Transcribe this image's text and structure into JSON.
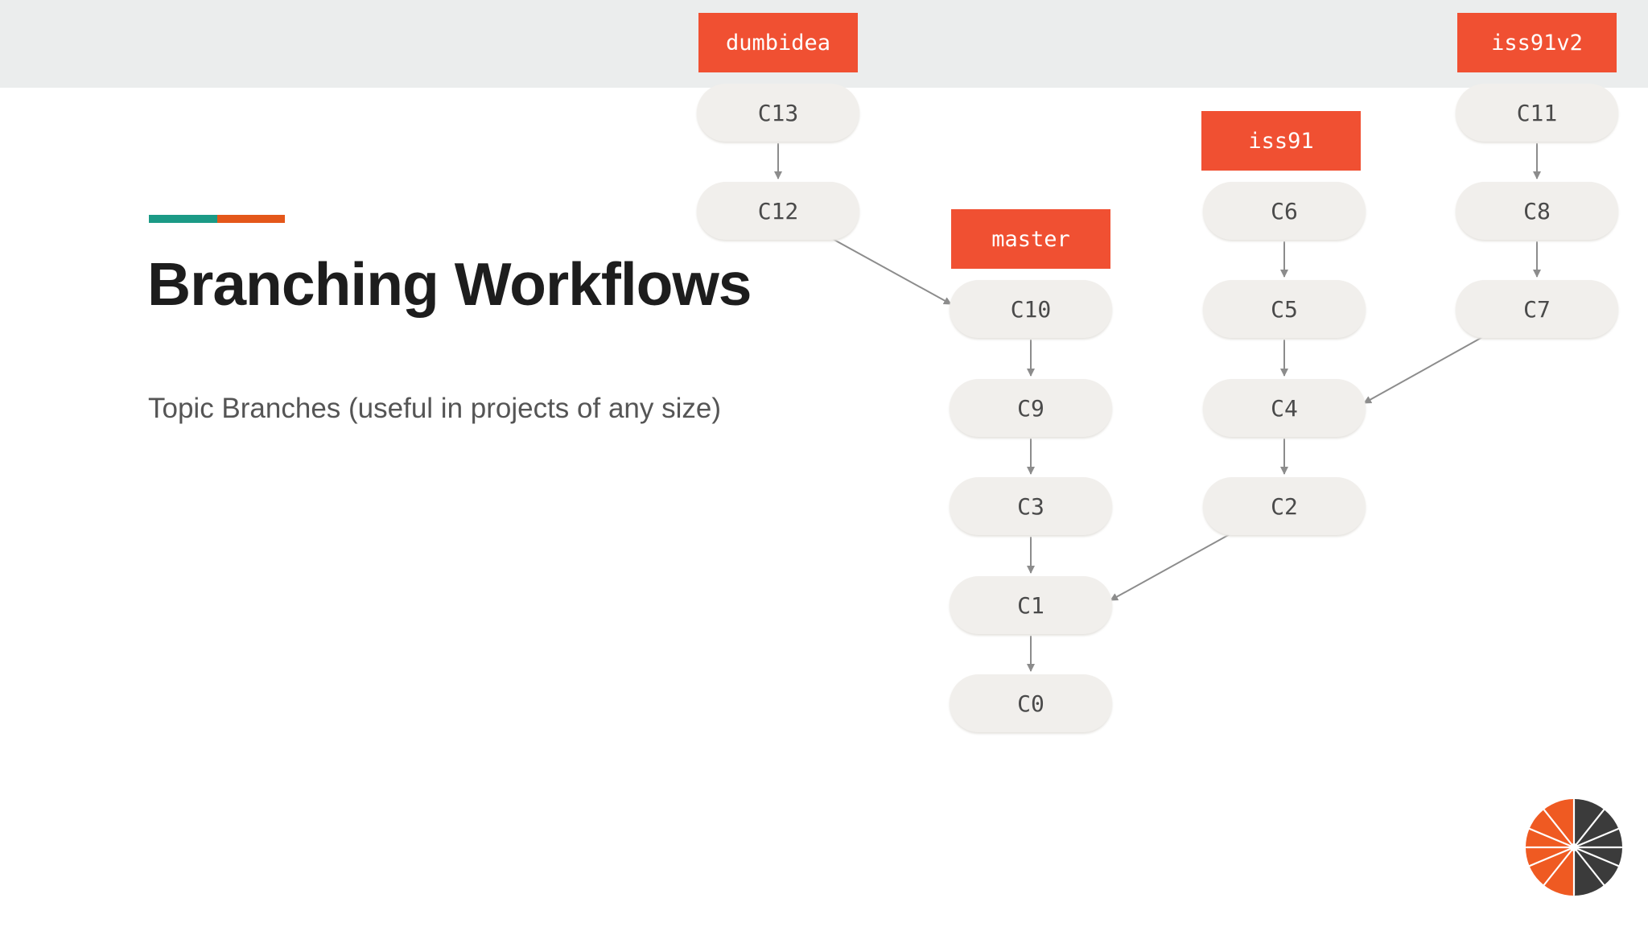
{
  "slide": {
    "title": "Branching Workflows",
    "subtitle": "Topic Branches (useful in projects of any size)"
  },
  "colors": {
    "top_band": "#ebeded",
    "accent_teal": "#1b9a86",
    "accent_orange": "#e4571a",
    "branch_label_bg": "#f05032",
    "commit_bg": "#f1efec",
    "arrow": "#8c8c8c"
  },
  "diagram": {
    "branches": [
      {
        "id": "dumbidea",
        "label": "dumbidea",
        "points_to": "C13"
      },
      {
        "id": "master",
        "label": "master",
        "points_to": "C10"
      },
      {
        "id": "iss91",
        "label": "iss91",
        "points_to": "C6"
      },
      {
        "id": "iss91v2",
        "label": "iss91v2",
        "points_to": "C11"
      }
    ],
    "commits": [
      {
        "id": "C13",
        "label": "C13",
        "parent": "C12"
      },
      {
        "id": "C12",
        "label": "C12",
        "parent": "C10"
      },
      {
        "id": "C10",
        "label": "C10",
        "parent": "C9"
      },
      {
        "id": "C9",
        "label": "C9",
        "parent": "C3"
      },
      {
        "id": "C3",
        "label": "C3",
        "parent": "C1"
      },
      {
        "id": "C1",
        "label": "C1",
        "parent": "C0"
      },
      {
        "id": "C0",
        "label": "C0",
        "parent": null
      },
      {
        "id": "C6",
        "label": "C6",
        "parent": "C5"
      },
      {
        "id": "C5",
        "label": "C5",
        "parent": "C4"
      },
      {
        "id": "C4",
        "label": "C4",
        "parent": "C2"
      },
      {
        "id": "C2",
        "label": "C2",
        "parent": "C1"
      },
      {
        "id": "C11",
        "label": "C11",
        "parent": "C8"
      },
      {
        "id": "C8",
        "label": "C8",
        "parent": "C7"
      },
      {
        "id": "C7",
        "label": "C7",
        "parent": "C4"
      }
    ]
  },
  "logo": {
    "icon": "orange-gray-spark-logo"
  }
}
